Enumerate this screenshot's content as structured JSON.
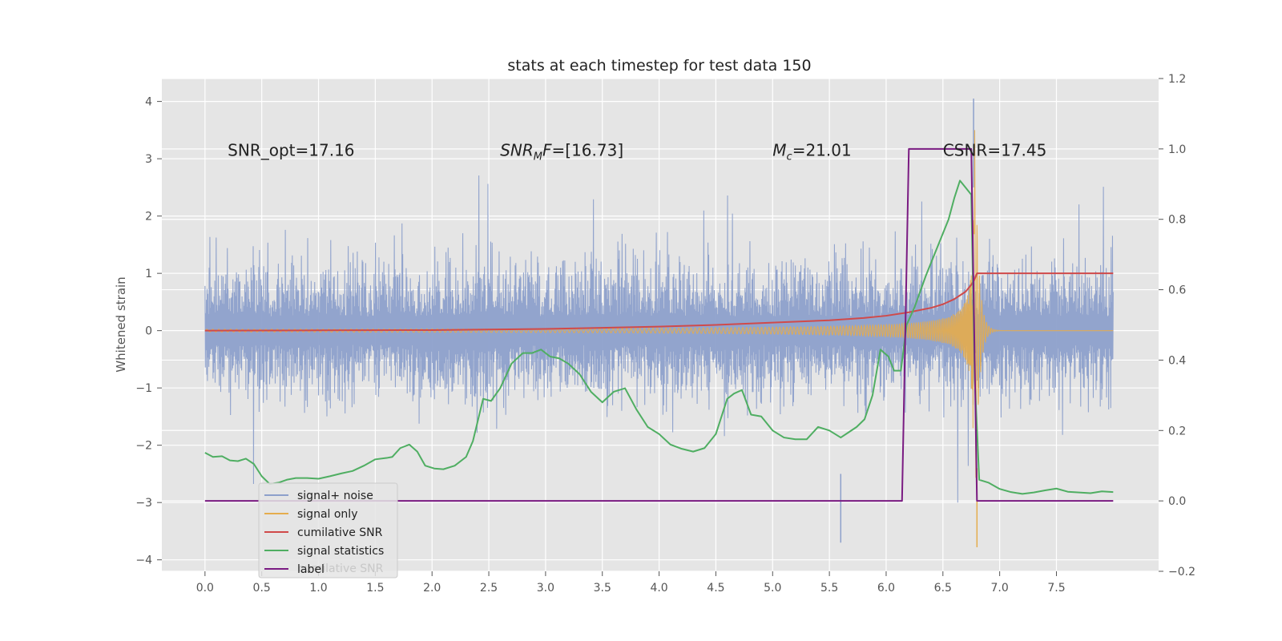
{
  "chart_data": {
    "type": "line",
    "title": "stats at each timestep for test data 150",
    "ylabel": "Whitened strain",
    "ylabel_right": "",
    "xlim": [
      -0.38,
      8.4
    ],
    "ylim": [
      -4.2,
      4.4
    ],
    "ylim_right": [
      -0.2,
      1.2
    ],
    "x_ticks": [
      "0.0",
      "0.5",
      "1.0",
      "1.5",
      "2.0",
      "2.5",
      "3.0",
      "3.5",
      "4.0",
      "4.5",
      "5.0",
      "5.5",
      "6.0",
      "6.5",
      "7.0",
      "7.5"
    ],
    "y_ticks": [
      "4",
      "3",
      "2",
      "1",
      "0",
      "−1",
      "−2",
      "−3",
      "−4"
    ],
    "y_ticks_right": [
      "1.2",
      "1.0",
      "0.8",
      "0.6",
      "0.4",
      "0.2",
      "0.0",
      "−0.2"
    ],
    "grid": true,
    "legend_position": "lower-left",
    "legend_ghost_text": "cumilative SNR",
    "annotations": [
      {
        "text": "SNR_opt=17.16",
        "x": 0.2,
        "y": 3.15
      },
      {
        "text": "SNR_MF=[16.73]",
        "base": "SNR",
        "sub": "M",
        "after": "F=[16.73]",
        "x": 2.6,
        "y": 3.15
      },
      {
        "text": "M_c=21.01",
        "base": "M",
        "sub": "c",
        "after": "=21.01",
        "x": 5.0,
        "y": 3.15
      },
      {
        "text": "CSNR=17.45",
        "x": 6.5,
        "y": 3.15
      }
    ],
    "series": [
      {
        "name": "signal+ noise",
        "color": "#8da0cb",
        "axis": "left",
        "kind": "noise",
        "x_range": [
          0.0,
          8.0
        ],
        "envelope": 1.85,
        "peak_max": 4.05,
        "peak_min": -3.7
      },
      {
        "name": "signal only",
        "color": "#e5ac4d",
        "axis": "left",
        "kind": "chirp",
        "x_range": [
          0.0,
          8.0
        ],
        "merger_time": 6.78,
        "amplitude_max": 3.5
      },
      {
        "name": "cumilative SNR",
        "color": "#d04a4a",
        "axis": "left",
        "x": [
          0.0,
          1.0,
          2.0,
          2.5,
          3.0,
          3.5,
          4.0,
          4.5,
          5.0,
          5.5,
          5.8,
          6.0,
          6.2,
          6.4,
          6.5,
          6.6,
          6.7,
          6.75,
          6.78,
          6.8,
          7.0,
          8.0
        ],
        "values": [
          0.0,
          0.005,
          0.01,
          0.02,
          0.03,
          0.05,
          0.07,
          0.1,
          0.14,
          0.18,
          0.22,
          0.26,
          0.32,
          0.4,
          0.46,
          0.55,
          0.68,
          0.8,
          0.9,
          1.0,
          1.0,
          1.0
        ]
      },
      {
        "name": "signal statistics",
        "color": "#4fae62",
        "axis": "right",
        "x": [
          0.0,
          0.07,
          0.15,
          0.22,
          0.29,
          0.36,
          0.43,
          0.5,
          0.57,
          0.65,
          0.72,
          0.8,
          0.9,
          1.0,
          1.1,
          1.2,
          1.3,
          1.4,
          1.5,
          1.6,
          1.65,
          1.72,
          1.8,
          1.87,
          1.94,
          2.02,
          2.1,
          2.2,
          2.3,
          2.36,
          2.45,
          2.52,
          2.6,
          2.7,
          2.8,
          2.88,
          2.96,
          3.04,
          3.12,
          3.2,
          3.3,
          3.4,
          3.5,
          3.6,
          3.7,
          3.8,
          3.9,
          4.0,
          4.1,
          4.2,
          4.3,
          4.4,
          4.5,
          4.6,
          4.66,
          4.73,
          4.81,
          4.9,
          5.0,
          5.1,
          5.2,
          5.3,
          5.4,
          5.5,
          5.6,
          5.67,
          5.74,
          5.81,
          5.88,
          5.95,
          6.02,
          6.07,
          6.13,
          6.18,
          6.25,
          6.35,
          6.45,
          6.55,
          6.6,
          6.65,
          6.7,
          6.75,
          6.78,
          6.82,
          6.9,
          7.0,
          7.1,
          7.2,
          7.3,
          7.4,
          7.5,
          7.6,
          7.7,
          7.8,
          7.9,
          8.0
        ],
        "values": [
          0.137,
          0.125,
          0.127,
          0.115,
          0.113,
          0.12,
          0.105,
          0.07,
          0.048,
          0.052,
          0.06,
          0.065,
          0.065,
          0.063,
          0.07,
          0.078,
          0.085,
          0.1,
          0.118,
          0.122,
          0.125,
          0.15,
          0.16,
          0.14,
          0.1,
          0.092,
          0.09,
          0.1,
          0.125,
          0.17,
          0.29,
          0.284,
          0.32,
          0.39,
          0.42,
          0.42,
          0.43,
          0.41,
          0.405,
          0.39,
          0.36,
          0.31,
          0.28,
          0.31,
          0.32,
          0.26,
          0.21,
          0.19,
          0.16,
          0.148,
          0.14,
          0.15,
          0.19,
          0.29,
          0.305,
          0.315,
          0.245,
          0.24,
          0.2,
          0.18,
          0.175,
          0.175,
          0.21,
          0.2,
          0.18,
          0.195,
          0.21,
          0.232,
          0.3,
          0.43,
          0.41,
          0.37,
          0.37,
          0.5,
          0.55,
          0.64,
          0.72,
          0.8,
          0.86,
          0.91,
          0.89,
          0.87,
          0.35,
          0.06,
          0.052,
          0.034,
          0.025,
          0.02,
          0.024,
          0.03,
          0.035,
          0.026,
          0.024,
          0.022,
          0.027,
          0.025
        ]
      },
      {
        "name": "label",
        "color": "#7a1b82",
        "axis": "right",
        "x": [
          0.0,
          6.14,
          6.2,
          6.75,
          6.8,
          8.0
        ],
        "values": [
          0.0,
          0.0,
          1.0,
          1.0,
          0.0,
          0.0
        ]
      }
    ]
  }
}
